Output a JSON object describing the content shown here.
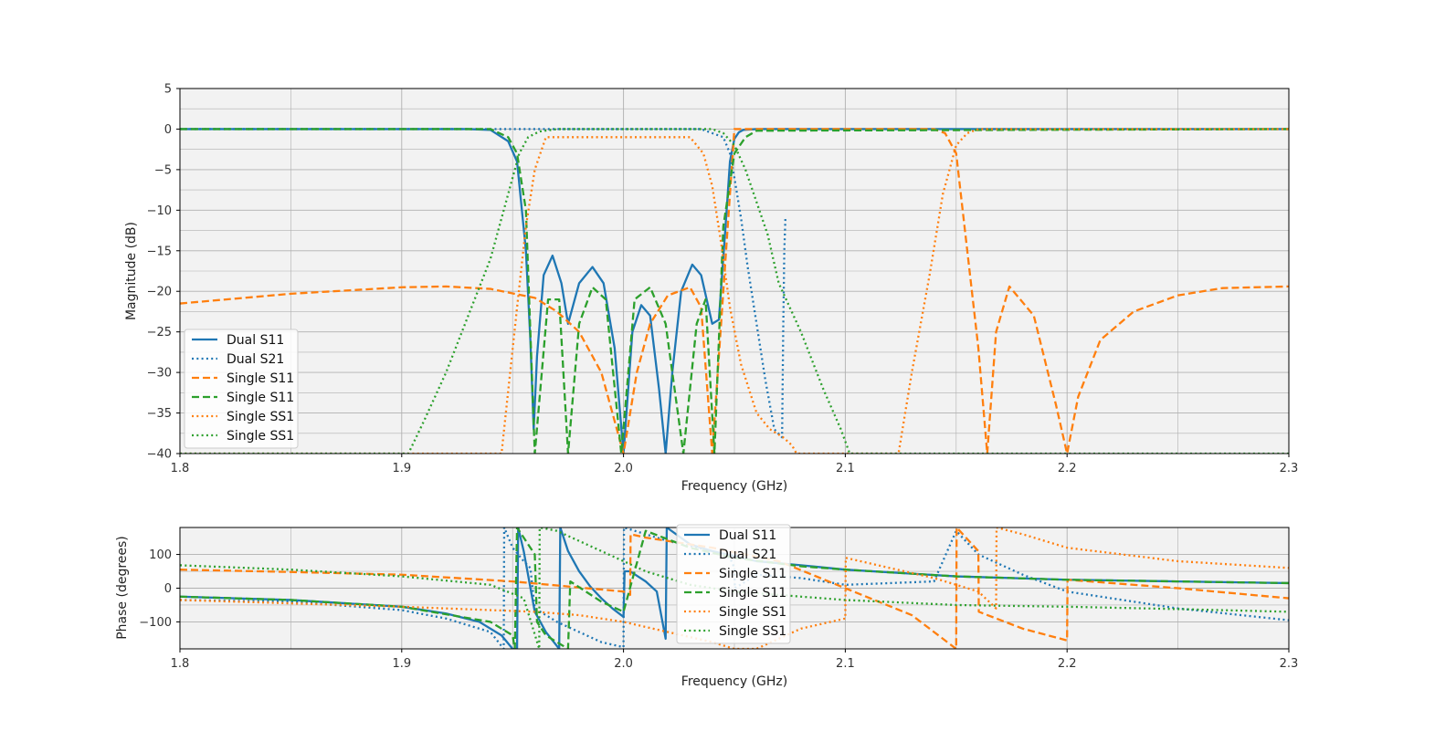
{
  "colors": {
    "blue": "#1f77b4",
    "orange": "#ff7f0e",
    "green": "#2ca02c",
    "plot_bg": "#f2f2f2",
    "grid": "#b0b0b0"
  },
  "chart_data": [
    {
      "type": "line",
      "xlabel": "Frequency (GHz)",
      "ylabel": "Magnitude (dB)",
      "xlim": [
        1.8,
        2.3
      ],
      "ylim": [
        -40,
        5
      ],
      "xticks": [
        1.8,
        1.9,
        2.0,
        2.1,
        2.2,
        2.3
      ],
      "xtick_labels": [
        "1.8",
        "1.9",
        "2.0",
        "2.1",
        "2.2",
        "2.3"
      ],
      "yticks": [
        5,
        0,
        -5,
        -10,
        -15,
        -20,
        -25,
        -30,
        -35,
        -40
      ],
      "ytick_labels": [
        "5",
        "0",
        "−5",
        "−10",
        "−15",
        "−20",
        "−25",
        "−30",
        "−35",
        "−40"
      ],
      "grid": true,
      "legend_position": "lower-left",
      "series": [
        {
          "name": "Dual S11",
          "color": "blue",
          "style": "solid",
          "x": [
            1.8,
            1.93,
            1.94,
            1.948,
            1.952,
            1.956,
            1.958,
            1.9595,
            1.961,
            1.964,
            1.968,
            1.972,
            1.975,
            1.98,
            1.986,
            1.991,
            1.996,
            2.0,
            2.004,
            2.008,
            2.012,
            2.016,
            2.019,
            2.022,
            2.026,
            2.031,
            2.035,
            2.04,
            2.043,
            2.046,
            2.048,
            2.05,
            2.052,
            2.054,
            2.06,
            2.3
          ],
          "y": [
            0,
            0,
            -0.1,
            -1.5,
            -4,
            -15,
            -26,
            -37,
            -28,
            -18,
            -15.6,
            -19,
            -24,
            -19,
            -17,
            -19,
            -27,
            -40,
            -25,
            -21.7,
            -23,
            -32,
            -40,
            -30,
            -20,
            -16.7,
            -18,
            -24,
            -23.5,
            -12,
            -4,
            -1.2,
            -0.4,
            -0.1,
            0,
            0
          ]
        },
        {
          "name": "Dual S21",
          "color": "blue",
          "style": "dotted",
          "x": [
            1.8,
            2.035,
            2.045,
            2.048,
            2.05,
            2.053,
            2.056,
            2.06,
            2.064,
            2.068,
            2.0715,
            2.072,
            2.0725,
            2.073
          ],
          "y": [
            0,
            0,
            -1,
            -3,
            -6,
            -11,
            -17,
            -24,
            -31,
            -37,
            -38,
            -25,
            -15,
            -11
          ]
        },
        {
          "name": "Single S11",
          "color": "orange",
          "style": "dashed",
          "x": [
            1.8,
            1.85,
            1.9,
            1.92,
            1.94,
            1.96,
            1.97,
            1.98,
            1.99,
            1.996,
            2.0,
            2.006,
            2.012,
            2.02,
            2.03,
            2.035,
            2.04,
            2.05,
            2.14,
            2.145,
            2.15,
            2.155,
            2.16,
            2.164,
            2.168,
            2.174,
            2.185,
            2.195,
            2.2,
            2.205,
            2.215,
            2.23,
            2.25,
            2.27,
            2.3
          ],
          "y": [
            -21.5,
            -20.3,
            -19.5,
            -19.4,
            -19.7,
            -20.8,
            -22.5,
            -25,
            -30,
            -36,
            -40,
            -30,
            -24,
            -20.5,
            -19.5,
            -22,
            -40,
            0,
            0,
            -0.5,
            -3,
            -15,
            -27,
            -40,
            -25,
            -19.4,
            -23,
            -34,
            -40,
            -33,
            -26,
            -22.5,
            -20.5,
            -19.6,
            -19.4
          ]
        },
        {
          "name": "Single S11",
          "color": "green",
          "style": "dashed",
          "x": [
            1.8,
            1.94,
            1.948,
            1.952,
            1.956,
            1.96,
            1.966,
            1.971,
            1.975,
            1.98,
            1.986,
            1.992,
            1.999,
            2.005,
            2.012,
            2.019,
            2.027,
            2.033,
            2.037,
            2.041,
            2.045,
            2.05,
            2.055,
            2.06,
            2.3
          ],
          "y": [
            0,
            0,
            -1,
            -3,
            -10,
            -40,
            -21,
            -21,
            -40,
            -24,
            -19.5,
            -21,
            -40,
            -21,
            -19.5,
            -24,
            -40,
            -24,
            -21,
            -40,
            -12,
            -3,
            -1,
            -0.2,
            0
          ]
        },
        {
          "name": "Single SS1",
          "color": "orange",
          "style": "dotted",
          "x": [
            1.8,
            1.945,
            1.952,
            1.956,
            1.96,
            1.965,
            2.03,
            2.036,
            2.04,
            2.044,
            2.048,
            2.053,
            2.06,
            2.066,
            2.072,
            2.076,
            2.078,
            2.124,
            2.13,
            2.138,
            2.144,
            2.15,
            2.155,
            2.16,
            2.3
          ],
          "y": [
            -40,
            -40,
            -22,
            -12,
            -5,
            -1,
            -1,
            -3,
            -7,
            -14,
            -22,
            -29,
            -35,
            -37,
            -38,
            -39,
            -40,
            -40,
            -30,
            -18,
            -8,
            -2,
            -0.5,
            0,
            0
          ]
        },
        {
          "name": "Single SS1",
          "color": "green",
          "style": "dotted",
          "x": [
            1.8,
            1.903,
            1.91,
            1.92,
            1.93,
            1.94,
            1.948,
            1.953,
            1.957,
            1.962,
            1.97,
            2.04,
            2.045,
            2.05,
            2.055,
            2.06,
            2.065,
            2.07,
            2.08,
            2.09,
            2.098,
            2.102,
            2.3
          ],
          "y": [
            -40,
            -40,
            -36,
            -30,
            -23,
            -16,
            -8,
            -3,
            -1,
            -0.3,
            0,
            0,
            -0.5,
            -2,
            -5,
            -9,
            -13,
            -19,
            -25,
            -32,
            -37,
            -40,
            -40
          ]
        }
      ]
    },
    {
      "type": "line",
      "xlabel": "Frequency (GHz)",
      "ylabel": "Phase (degrees)",
      "xlim": [
        1.8,
        2.3
      ],
      "ylim": [
        -180,
        180
      ],
      "xticks": [
        1.8,
        1.9,
        2.0,
        2.1,
        2.2,
        2.3
      ],
      "xtick_labels": [
        "1.8",
        "1.9",
        "2.0",
        "2.1",
        "2.2",
        "2.3"
      ],
      "yticks": [
        100,
        0,
        -100
      ],
      "ytick_labels": [
        "100",
        "0",
        "−100"
      ],
      "grid": true,
      "legend_position": "upper-center",
      "series": [
        {
          "name": "Dual S11",
          "color": "blue",
          "style": "solid",
          "x": [
            1.8,
            1.85,
            1.9,
            1.92,
            1.935,
            1.945,
            1.95,
            1.952,
            1.9525,
            1.955,
            1.96,
            1.965,
            1.971,
            1.9715,
            1.975,
            1.98,
            1.985,
            1.99,
            1.995,
            2.0,
            2.0005,
            2.003,
            2.01,
            2.015,
            2.019,
            2.0195,
            2.03,
            2.04,
            2.05,
            2.06,
            2.08,
            2.1,
            2.15,
            2.2,
            2.25,
            2.3
          ],
          "y": [
            -25,
            -35,
            -55,
            -75,
            -100,
            -140,
            -180,
            -180,
            180,
            110,
            -70,
            -130,
            -180,
            180,
            110,
            50,
            5,
            -30,
            -60,
            -85,
            50,
            50,
            20,
            -10,
            -150,
            180,
            130,
            110,
            95,
            80,
            68,
            55,
            35,
            25,
            20,
            15
          ]
        },
        {
          "name": "Dual S21",
          "color": "blue",
          "style": "dotted",
          "x": [
            1.8,
            1.85,
            1.9,
            1.92,
            1.94,
            1.946,
            1.9462,
            1.95,
            1.955,
            1.958,
            1.96,
            1.97,
            1.98,
            1.99,
            2.0,
            2.0002,
            2.01,
            2.02,
            2.04,
            2.048,
            2.05,
            2.0502,
            2.06,
            2.08,
            2.1,
            2.14,
            2.15,
            2.16,
            2.18,
            2.2,
            2.25,
            2.3
          ],
          "y": [
            -35,
            -40,
            -65,
            -90,
            -130,
            -180,
            180,
            120,
            80,
            60,
            -60,
            -100,
            -130,
            -160,
            -175,
            180,
            160,
            140,
            110,
            90,
            60,
            0,
            40,
            30,
            10,
            20,
            170,
            100,
            40,
            -10,
            -60,
            -95
          ]
        },
        {
          "name": "Single S11",
          "color": "orange",
          "style": "dashed",
          "x": [
            1.8,
            1.85,
            1.9,
            1.95,
            2.0,
            2.003,
            2.0032,
            2.01,
            2.02,
            2.04,
            2.07,
            2.1,
            2.13,
            2.15,
            2.1502,
            2.16,
            2.1602,
            2.18,
            2.2,
            2.2002,
            2.25,
            2.3
          ],
          "y": [
            55,
            48,
            40,
            20,
            -10,
            -20,
            160,
            150,
            140,
            120,
            80,
            0,
            -80,
            -180,
            180,
            110,
            -70,
            -120,
            -155,
            25,
            0,
            -30
          ]
        },
        {
          "name": "Single S11",
          "color": "green",
          "style": "dashed",
          "x": [
            1.8,
            1.85,
            1.9,
            1.94,
            1.95,
            1.951,
            1.952,
            1.96,
            1.961,
            1.965,
            1.975,
            1.976,
            1.99,
            2.0,
            2.01,
            2.03,
            2.05,
            2.08,
            2.1,
            2.15,
            2.2,
            2.25,
            2.3
          ],
          "y": [
            -25,
            -35,
            -55,
            -100,
            -140,
            -180,
            180,
            100,
            -100,
            -140,
            -180,
            20,
            -40,
            -70,
            170,
            120,
            90,
            65,
            55,
            35,
            25,
            20,
            15
          ]
        },
        {
          "name": "Single SS1",
          "color": "orange",
          "style": "dotted",
          "x": [
            1.8,
            1.9,
            1.96,
            1.98,
            2.0,
            2.02,
            2.04,
            2.05,
            2.06,
            2.08,
            2.1,
            2.1002,
            2.12,
            2.14,
            2.16,
            2.168,
            2.1682,
            2.18,
            2.2,
            2.25,
            2.3
          ],
          "y": [
            -35,
            -55,
            -70,
            -80,
            -100,
            -130,
            -160,
            -180,
            -180,
            -120,
            -90,
            90,
            60,
            30,
            -10,
            -60,
            180,
            160,
            120,
            80,
            60
          ]
        },
        {
          "name": "Single SS1",
          "color": "green",
          "style": "dotted",
          "x": [
            1.8,
            1.85,
            1.9,
            1.94,
            1.955,
            1.962,
            1.9622,
            1.97,
            1.99,
            2.01,
            2.03,
            2.05,
            2.08,
            2.1,
            2.15,
            2.2,
            2.25,
            2.3
          ],
          "y": [
            68,
            55,
            35,
            10,
            -30,
            -180,
            180,
            170,
            110,
            50,
            10,
            -10,
            -25,
            -35,
            -50,
            -55,
            -62,
            -70
          ]
        }
      ]
    }
  ]
}
